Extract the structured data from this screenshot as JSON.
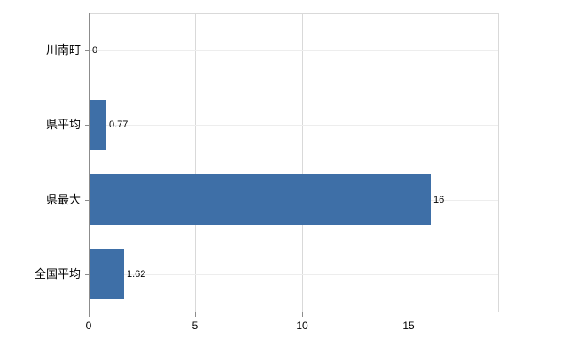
{
  "chart_data": {
    "type": "bar",
    "orientation": "horizontal",
    "title": "",
    "xlabel": "",
    "ylabel": "",
    "categories": [
      "川南町",
      "県平均",
      "県最大",
      "全国平均"
    ],
    "values": [
      0,
      0.77,
      16,
      1.62
    ],
    "value_labels": [
      "0",
      "0.77",
      "16",
      "1.62"
    ],
    "xlim": [
      0,
      19.2
    ],
    "xticks": [
      0,
      5,
      10,
      15
    ],
    "xtick_labels": [
      "0",
      "5",
      "10",
      "15"
    ],
    "grid": true,
    "legend": "none",
    "bar_color": "#3e6fa7",
    "axis_color": "#8c8c8c",
    "gridline_color": "#d9d9d9",
    "text_color": "#000000",
    "background_color": "#ffffff"
  }
}
